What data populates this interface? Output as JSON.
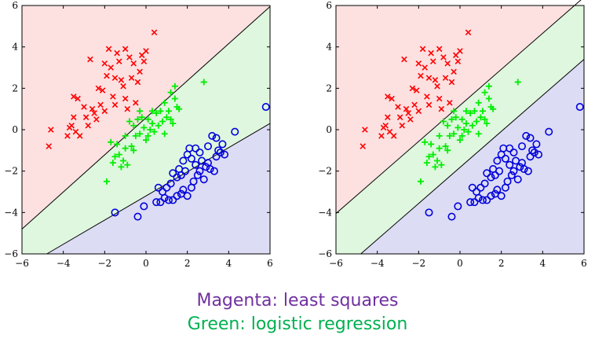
{
  "colors": {
    "region_red": "#fde0e0",
    "region_green": "#def7de",
    "region_blue": "#dcdcf4",
    "red_marker": "#ff0000",
    "green_marker": "#00ee00",
    "blue_marker": "#0000dd",
    "magenta_text": "#7030a0",
    "green_text": "#00b050"
  },
  "captions": {
    "line1": "Magenta: least squares",
    "line2": "Green: logistic regression"
  },
  "chart_data": [
    {
      "type": "scatter",
      "xlim": [
        -6,
        6
      ],
      "ylim": [
        -6,
        6
      ],
      "xticks": [
        -6,
        -4,
        -2,
        0,
        2,
        4,
        6
      ],
      "yticks": [
        -6,
        -4,
        -2,
        0,
        2,
        4,
        6
      ],
      "grid": false,
      "boundaries": [
        {
          "points": [
            [
              -6,
              -4.8
            ],
            [
              6,
              5.95
            ]
          ]
        },
        {
          "points": [
            [
              -4.8,
              -6
            ],
            [
              6,
              0.3
            ]
          ]
        }
      ],
      "regions": [
        "red",
        "green",
        "blue"
      ],
      "series": [
        {
          "marker": "x",
          "color": "red",
          "points": [
            [
              -4.6,
              0.0
            ],
            [
              -4.7,
              -0.8
            ],
            [
              -3.7,
              0.1
            ],
            [
              -3.6,
              0.2
            ],
            [
              -3.8,
              -0.3
            ],
            [
              -3.5,
              0.6
            ],
            [
              -3.4,
              -0.1
            ],
            [
              -3.2,
              -0.3
            ],
            [
              -3.0,
              1.1
            ],
            [
              -2.9,
              0.6
            ],
            [
              -2.8,
              0.2
            ],
            [
              -3.5,
              1.6
            ],
            [
              -3.3,
              1.5
            ],
            [
              -2.6,
              1.0
            ],
            [
              -2.4,
              0.5
            ],
            [
              -2.2,
              1.2
            ],
            [
              -2.0,
              0.9
            ],
            [
              -2.1,
              1.9
            ],
            [
              -2.3,
              2.0
            ],
            [
              -1.9,
              2.6
            ],
            [
              -1.7,
              3.0
            ],
            [
              -2.0,
              3.2
            ],
            [
              -1.5,
              2.5
            ],
            [
              -1.6,
              1.6
            ],
            [
              -1.4,
              3.7
            ],
            [
              -1.3,
              3.3
            ],
            [
              -1.2,
              2.4
            ],
            [
              -1.0,
              3.9
            ],
            [
              -0.8,
              3.5
            ],
            [
              -0.6,
              3.2
            ],
            [
              -1.8,
              3.9
            ],
            [
              -1.0,
              1.5
            ],
            [
              -0.5,
              1.3
            ],
            [
              -0.7,
              2.5
            ],
            [
              -0.4,
              2.3
            ],
            [
              -0.2,
              3.6
            ],
            [
              -0.1,
              3.3
            ],
            [
              0.0,
              3.8
            ],
            [
              0.4,
              4.7
            ],
            [
              -0.3,
              2.8
            ],
            [
              -0.9,
              1.0
            ],
            [
              -2.7,
              3.4
            ],
            [
              -1.1,
              2.1
            ],
            [
              -1.5,
              1.2
            ],
            [
              -2.5,
              0.8
            ]
          ]
        },
        {
          "marker": "+",
          "color": "green",
          "points": [
            [
              -1.9,
              -2.5
            ],
            [
              -1.7,
              -0.6
            ],
            [
              -1.6,
              -1.6
            ],
            [
              -1.5,
              -1.3
            ],
            [
              -1.3,
              -1.2
            ],
            [
              -1.2,
              -1.8
            ],
            [
              -1.1,
              -1.5
            ],
            [
              -1.0,
              -0.9
            ],
            [
              -0.9,
              -1.7
            ],
            [
              -0.8,
              0.4
            ],
            [
              -0.7,
              -0.8
            ],
            [
              -0.6,
              0.2
            ],
            [
              -0.5,
              -0.3
            ],
            [
              -0.4,
              0.5
            ],
            [
              -0.3,
              -0.2
            ],
            [
              -0.2,
              0.6
            ],
            [
              -0.1,
              0.1
            ],
            [
              0.0,
              -0.5
            ],
            [
              0.1,
              -0.3
            ],
            [
              0.2,
              0.0
            ],
            [
              0.3,
              0.3
            ],
            [
              0.4,
              -0.1
            ],
            [
              0.5,
              0.8
            ],
            [
              0.6,
              0.2
            ],
            [
              0.7,
              0.9
            ],
            [
              0.8,
              0.4
            ],
            [
              0.9,
              1.3
            ],
            [
              1.0,
              0.6
            ],
            [
              1.1,
              0.9
            ],
            [
              1.2,
              1.8
            ],
            [
              1.3,
              0.3
            ],
            [
              1.4,
              2.1
            ],
            [
              1.5,
              1.1
            ],
            [
              1.6,
              1.0
            ],
            [
              1.4,
              1.5
            ],
            [
              2.8,
              2.3
            ],
            [
              -1.0,
              -0.3
            ],
            [
              -0.6,
              -1.0
            ],
            [
              0.3,
              0.9
            ],
            [
              0.9,
              -0.2
            ],
            [
              -0.3,
              0.9
            ],
            [
              -1.4,
              -0.7
            ],
            [
              1.2,
              0.5
            ],
            [
              0.1,
              0.5
            ]
          ]
        },
        {
          "marker": "o",
          "color": "blue",
          "points": [
            [
              -1.5,
              -4.0
            ],
            [
              -0.4,
              -4.2
            ],
            [
              -0.1,
              -3.7
            ],
            [
              0.5,
              -3.5
            ],
            [
              0.7,
              -3.5
            ],
            [
              0.9,
              -3.3
            ],
            [
              1.1,
              -3.4
            ],
            [
              1.3,
              -3.4
            ],
            [
              1.5,
              -3.2
            ],
            [
              1.7,
              -3.1
            ],
            [
              1.8,
              -2.9
            ],
            [
              2.0,
              -3.2
            ],
            [
              2.2,
              -2.8
            ],
            [
              2.3,
              -2.5
            ],
            [
              2.5,
              -2.2
            ],
            [
              2.6,
              -2.0
            ],
            [
              2.8,
              -2.4
            ],
            [
              2.9,
              -1.8
            ],
            [
              3.0,
              -1.6
            ],
            [
              3.1,
              -1.9
            ],
            [
              3.3,
              -2.0
            ],
            [
              3.4,
              -1.3
            ],
            [
              3.5,
              -1.0
            ],
            [
              3.6,
              -1.1
            ],
            [
              3.7,
              -0.7
            ],
            [
              3.2,
              -0.3
            ],
            [
              3.0,
              -0.8
            ],
            [
              2.7,
              -1.5
            ],
            [
              2.4,
              -1.7
            ],
            [
              2.2,
              -1.4
            ],
            [
              2.0,
              -1.2
            ],
            [
              1.8,
              -1.5
            ],
            [
              1.6,
              -1.9
            ],
            [
              1.5,
              -2.3
            ],
            [
              1.3,
              -2.1
            ],
            [
              1.2,
              -2.6
            ],
            [
              1.0,
              -2.8
            ],
            [
              0.8,
              -3.0
            ],
            [
              0.6,
              -2.8
            ],
            [
              2.1,
              -0.9
            ],
            [
              2.4,
              -0.9
            ],
            [
              3.4,
              -0.4
            ],
            [
              4.3,
              -0.1
            ],
            [
              5.8,
              1.1
            ],
            [
              1.7,
              -2.2
            ],
            [
              1.9,
              -2.0
            ],
            [
              3.8,
              -1.2
            ],
            [
              2.6,
              -1.1
            ]
          ]
        }
      ]
    },
    {
      "type": "scatter",
      "xlim": [
        -6,
        6
      ],
      "ylim": [
        -6,
        6
      ],
      "xticks": [
        -6,
        -4,
        -2,
        0,
        2,
        4,
        6
      ],
      "yticks": [
        -6,
        -4,
        -2,
        0,
        2,
        4,
        6
      ],
      "grid": false,
      "boundaries": [
        {
          "points": [
            [
              -6,
              -4.05
            ],
            [
              6,
              6.4
            ]
          ]
        },
        {
          "points": [
            [
              -4.8,
              -6
            ],
            [
              6,
              3.4
            ]
          ]
        }
      ],
      "regions": [
        "red",
        "green",
        "blue"
      ],
      "series_same_as": 0
    }
  ]
}
